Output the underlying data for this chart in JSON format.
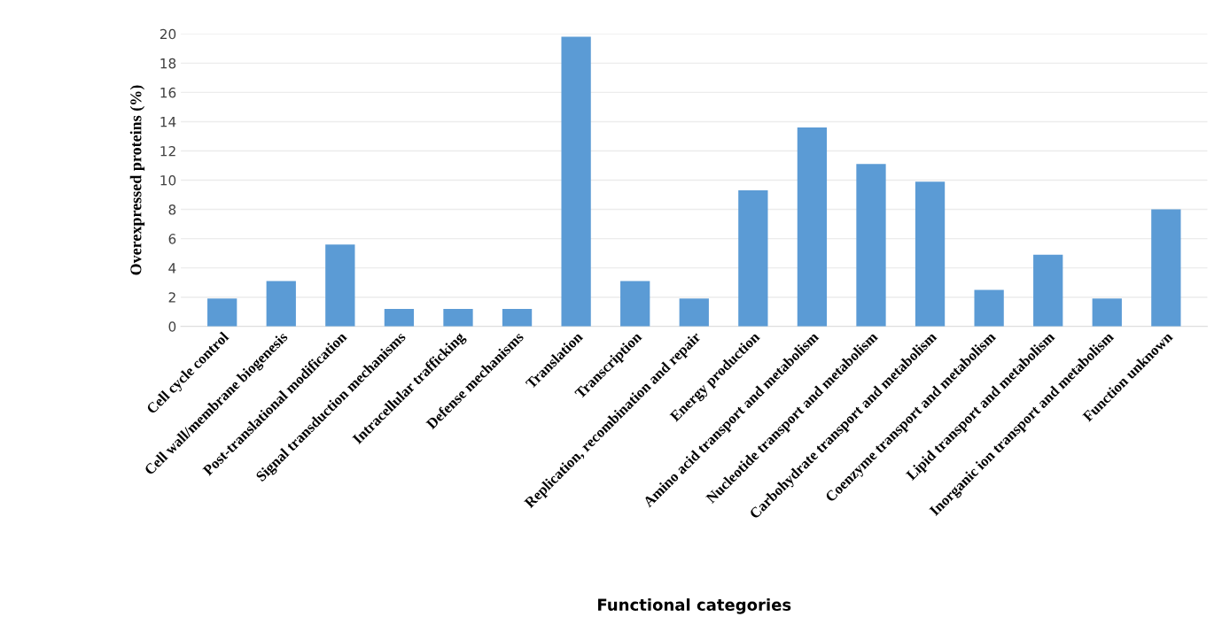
{
  "chart_data": {
    "type": "bar",
    "xlabel": "Functional categories",
    "ylabel": "Overexpressed proteins (%)",
    "categories": [
      "Cell cycle control",
      "Cell wall/membrane biogenesis",
      "Post-translational modification",
      "Signal transduction mechanisms",
      "Intracellular trafficking",
      "Defense mechanisms",
      "Translation",
      "Transcription",
      "Replication, recombination and repair",
      "Energy production",
      "Amino acid transport and metabolism",
      "Nucleotide transport and metabolism",
      "Carbohydrate transport and metabolism",
      "Coenzyme transport and metabolism",
      "Lipid transport and metabolism",
      "Inorganic ion transport and metabolism",
      "Function unknown"
    ],
    "values": [
      1.9,
      3.1,
      5.6,
      1.2,
      1.2,
      1.2,
      19.8,
      3.1,
      1.9,
      9.3,
      13.6,
      11.1,
      9.9,
      2.5,
      4.9,
      1.9,
      8.0
    ],
    "color": "#5b9bd5",
    "ylim": [
      0,
      20
    ],
    "yticks": [
      0,
      2,
      4,
      6,
      8,
      10,
      12,
      14,
      16,
      18,
      20
    ],
    "grid": "y",
    "legend": false
  }
}
